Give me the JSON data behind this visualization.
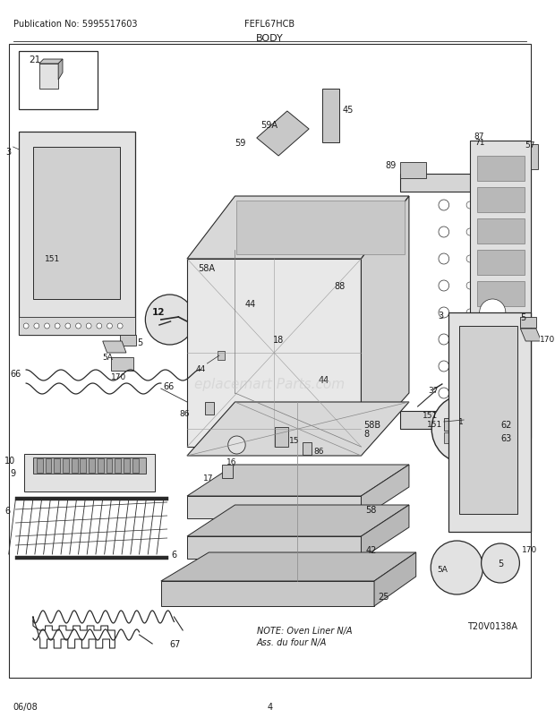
{
  "title": "BODY",
  "model": "FEFL67HCB",
  "pub_no": "Publication No: 5995517603",
  "date": "06/08",
  "page": "4",
  "diagram_ref": "T20V0138A",
  "note_line1": "NOTE: Oven Liner N/A",
  "note_line2": "Ass. du four N/A",
  "bg_color": "#ffffff",
  "line_color": "#2a2a2a",
  "text_color": "#1a1a1a",
  "watermark": "eplacemart Parts.com",
  "gray_fill": "#c8c8c8",
  "light_gray": "#e2e2e2",
  "mid_gray": "#b0b0b0"
}
